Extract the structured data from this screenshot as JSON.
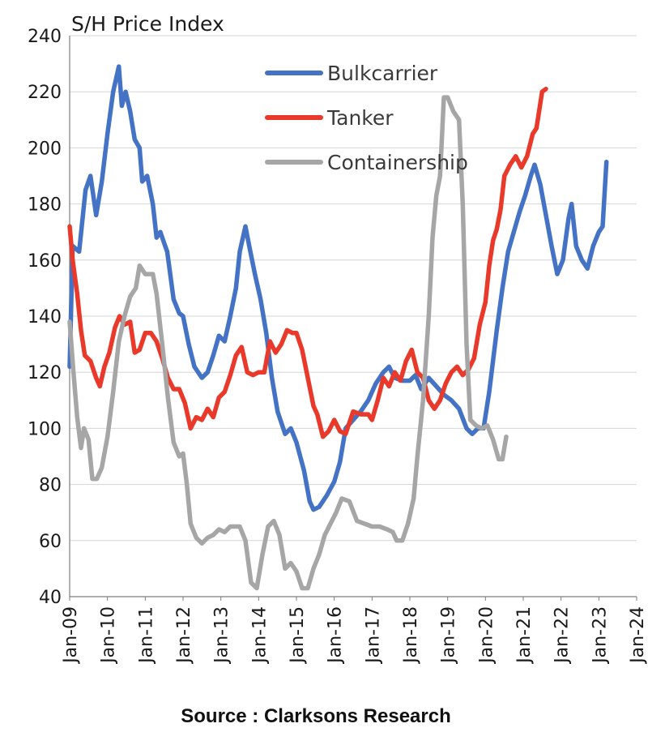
{
  "chart_data": {
    "type": "line",
    "ylabel": "S/H Price Index",
    "ylim": [
      40,
      240
    ],
    "yticks": [
      40,
      60,
      80,
      100,
      120,
      140,
      160,
      180,
      200,
      220,
      240
    ],
    "xlim": [
      2009.0,
      2024.0
    ],
    "xticks": [
      {
        "x": 2009,
        "label": "Jan-09"
      },
      {
        "x": 2010,
        "label": "Jan-10"
      },
      {
        "x": 2011,
        "label": "Jan-11"
      },
      {
        "x": 2012,
        "label": "Jan-12"
      },
      {
        "x": 2013,
        "label": "Jan-13"
      },
      {
        "x": 2014,
        "label": "Jan-14"
      },
      {
        "x": 2015,
        "label": "Jan-15"
      },
      {
        "x": 2016,
        "label": "Jan-16"
      },
      {
        "x": 2017,
        "label": "Jan-17"
      },
      {
        "x": 2018,
        "label": "Jan-18"
      },
      {
        "x": 2019,
        "label": "Jan-19"
      },
      {
        "x": 2020,
        "label": "Jan-20"
      },
      {
        "x": 2021,
        "label": "Jan-21"
      },
      {
        "x": 2022,
        "label": "Jan-22"
      },
      {
        "x": 2023,
        "label": "Jan-23"
      },
      {
        "x": 2024,
        "label": "Jan-24"
      }
    ],
    "grid": "horizontal",
    "legend_position": "top-center",
    "series": [
      {
        "name": "Bulkcarrier",
        "color": "#4472C4",
        "points": [
          [
            2009.0,
            122
          ],
          [
            2009.08,
            165
          ],
          [
            2009.25,
            163
          ],
          [
            2009.42,
            185
          ],
          [
            2009.55,
            190
          ],
          [
            2009.7,
            176
          ],
          [
            2009.85,
            188
          ],
          [
            2010.0,
            205
          ],
          [
            2010.15,
            220
          ],
          [
            2010.3,
            229
          ],
          [
            2010.38,
            215
          ],
          [
            2010.48,
            220
          ],
          [
            2010.6,
            213
          ],
          [
            2010.72,
            203
          ],
          [
            2010.85,
            200
          ],
          [
            2010.92,
            188
          ],
          [
            2011.05,
            190
          ],
          [
            2011.2,
            180
          ],
          [
            2011.3,
            168
          ],
          [
            2011.4,
            170
          ],
          [
            2011.5,
            166
          ],
          [
            2011.58,
            163
          ],
          [
            2011.65,
            156
          ],
          [
            2011.75,
            146
          ],
          [
            2011.9,
            141
          ],
          [
            2012.0,
            140
          ],
          [
            2012.15,
            130
          ],
          [
            2012.3,
            122
          ],
          [
            2012.5,
            118
          ],
          [
            2012.65,
            120
          ],
          [
            2012.8,
            126
          ],
          [
            2012.95,
            133
          ],
          [
            2013.1,
            131
          ],
          [
            2013.25,
            140
          ],
          [
            2013.4,
            150
          ],
          [
            2013.5,
            163
          ],
          [
            2013.65,
            172
          ],
          [
            2013.75,
            165
          ],
          [
            2013.9,
            155
          ],
          [
            2014.05,
            146
          ],
          [
            2014.2,
            134
          ],
          [
            2014.35,
            118
          ],
          [
            2014.5,
            106
          ],
          [
            2014.7,
            98
          ],
          [
            2014.85,
            100
          ],
          [
            2015.0,
            95
          ],
          [
            2015.2,
            85
          ],
          [
            2015.35,
            74
          ],
          [
            2015.45,
            71
          ],
          [
            2015.6,
            72
          ],
          [
            2015.8,
            76
          ],
          [
            2016.0,
            81
          ],
          [
            2016.15,
            88
          ],
          [
            2016.3,
            100
          ],
          [
            2016.5,
            103
          ],
          [
            2016.7,
            106
          ],
          [
            2016.9,
            110
          ],
          [
            2017.1,
            116
          ],
          [
            2017.3,
            120
          ],
          [
            2017.45,
            122
          ],
          [
            2017.6,
            118
          ],
          [
            2017.8,
            117
          ],
          [
            2018.0,
            117
          ],
          [
            2018.15,
            119
          ],
          [
            2018.3,
            114
          ],
          [
            2018.5,
            118
          ],
          [
            2018.7,
            115
          ],
          [
            2018.9,
            112
          ],
          [
            2019.1,
            110
          ],
          [
            2019.3,
            107
          ],
          [
            2019.5,
            100
          ],
          [
            2019.65,
            98
          ],
          [
            2019.8,
            100
          ],
          [
            2019.95,
            100
          ],
          [
            2020.1,
            113
          ],
          [
            2020.3,
            135
          ],
          [
            2020.45,
            150
          ],
          [
            2020.6,
            163
          ],
          [
            2020.75,
            170
          ],
          [
            2020.9,
            177
          ],
          [
            2021.05,
            183
          ],
          [
            2021.2,
            190
          ],
          [
            2021.3,
            194
          ],
          [
            2021.45,
            187
          ],
          [
            2021.6,
            176
          ],
          [
            2021.75,
            165
          ],
          [
            2021.9,
            155
          ],
          [
            2022.05,
            160
          ],
          [
            2022.2,
            175
          ],
          [
            2022.28,
            180
          ],
          [
            2022.4,
            165
          ],
          [
            2022.55,
            160
          ],
          [
            2022.7,
            157
          ],
          [
            2022.85,
            165
          ],
          [
            2023.0,
            170
          ],
          [
            2023.1,
            172
          ],
          [
            2023.2,
            195
          ]
        ]
      },
      {
        "name": "Tanker",
        "color": "#E8392A",
        "points": [
          [
            2009.0,
            172
          ],
          [
            2009.08,
            160
          ],
          [
            2009.2,
            148
          ],
          [
            2009.3,
            135
          ],
          [
            2009.4,
            126
          ],
          [
            2009.55,
            124
          ],
          [
            2009.7,
            118
          ],
          [
            2009.8,
            115
          ],
          [
            2009.92,
            122
          ],
          [
            2010.05,
            127
          ],
          [
            2010.2,
            136
          ],
          [
            2010.32,
            140
          ],
          [
            2010.45,
            137
          ],
          [
            2010.6,
            138
          ],
          [
            2010.72,
            127
          ],
          [
            2010.85,
            128
          ],
          [
            2011.0,
            134
          ],
          [
            2011.15,
            134
          ],
          [
            2011.3,
            131
          ],
          [
            2011.45,
            125
          ],
          [
            2011.6,
            118
          ],
          [
            2011.75,
            114
          ],
          [
            2011.9,
            114
          ],
          [
            2012.05,
            109
          ],
          [
            2012.2,
            100
          ],
          [
            2012.35,
            104
          ],
          [
            2012.5,
            103
          ],
          [
            2012.65,
            107
          ],
          [
            2012.8,
            104
          ],
          [
            2012.95,
            111
          ],
          [
            2013.1,
            113
          ],
          [
            2013.25,
            119
          ],
          [
            2013.4,
            126
          ],
          [
            2013.55,
            129
          ],
          [
            2013.7,
            120
          ],
          [
            2013.85,
            119
          ],
          [
            2014.0,
            120
          ],
          [
            2014.15,
            120
          ],
          [
            2014.3,
            131
          ],
          [
            2014.45,
            127
          ],
          [
            2014.6,
            130
          ],
          [
            2014.75,
            135
          ],
          [
            2014.9,
            134
          ],
          [
            2015.0,
            134
          ],
          [
            2015.15,
            128
          ],
          [
            2015.3,
            118
          ],
          [
            2015.45,
            108
          ],
          [
            2015.55,
            105
          ],
          [
            2015.7,
            97
          ],
          [
            2015.85,
            99
          ],
          [
            2016.0,
            103
          ],
          [
            2016.15,
            99
          ],
          [
            2016.3,
            98
          ],
          [
            2016.5,
            106
          ],
          [
            2016.7,
            105
          ],
          [
            2016.9,
            105
          ],
          [
            2017.0,
            103
          ],
          [
            2017.15,
            110
          ],
          [
            2017.3,
            118
          ],
          [
            2017.45,
            115
          ],
          [
            2017.6,
            120
          ],
          [
            2017.75,
            117
          ],
          [
            2017.9,
            124
          ],
          [
            2018.05,
            128
          ],
          [
            2018.2,
            120
          ],
          [
            2018.35,
            118
          ],
          [
            2018.5,
            110
          ],
          [
            2018.65,
            107
          ],
          [
            2018.8,
            110
          ],
          [
            2018.95,
            116
          ],
          [
            2019.1,
            120
          ],
          [
            2019.25,
            122
          ],
          [
            2019.4,
            119
          ],
          [
            2019.55,
            121
          ],
          [
            2019.7,
            125
          ],
          [
            2019.85,
            137
          ],
          [
            2020.0,
            145
          ],
          [
            2020.1,
            158
          ],
          [
            2020.2,
            167
          ],
          [
            2020.3,
            171
          ],
          [
            2020.4,
            178
          ],
          [
            2020.5,
            190
          ],
          [
            2020.65,
            194
          ],
          [
            2020.8,
            197
          ],
          [
            2020.95,
            193
          ],
          [
            2021.1,
            197
          ],
          [
            2021.25,
            205
          ],
          [
            2021.35,
            207
          ],
          [
            2021.5,
            220
          ],
          [
            2021.6,
            221
          ]
        ]
      },
      {
        "name": "Containership",
        "color": "#A6A6A6",
        "points": [
          [
            2009.0,
            138
          ],
          [
            2009.1,
            120
          ],
          [
            2009.2,
            104
          ],
          [
            2009.3,
            93
          ],
          [
            2009.38,
            100
          ],
          [
            2009.5,
            96
          ],
          [
            2009.6,
            82
          ],
          [
            2009.72,
            82
          ],
          [
            2009.85,
            86
          ],
          [
            2010.0,
            97
          ],
          [
            2010.15,
            113
          ],
          [
            2010.3,
            131
          ],
          [
            2010.45,
            140
          ],
          [
            2010.6,
            147
          ],
          [
            2010.75,
            150
          ],
          [
            2010.85,
            158
          ],
          [
            2011.0,
            155
          ],
          [
            2011.2,
            155
          ],
          [
            2011.3,
            148
          ],
          [
            2011.45,
            130
          ],
          [
            2011.6,
            111
          ],
          [
            2011.75,
            95
          ],
          [
            2011.9,
            90
          ],
          [
            2012.0,
            91
          ],
          [
            2012.1,
            80
          ],
          [
            2012.2,
            66
          ],
          [
            2012.35,
            61
          ],
          [
            2012.5,
            59
          ],
          [
            2012.65,
            61
          ],
          [
            2012.8,
            62
          ],
          [
            2012.95,
            64
          ],
          [
            2013.1,
            63
          ],
          [
            2013.25,
            65
          ],
          [
            2013.5,
            65
          ],
          [
            2013.65,
            60
          ],
          [
            2013.8,
            45
          ],
          [
            2013.95,
            43
          ],
          [
            2014.1,
            55
          ],
          [
            2014.25,
            65
          ],
          [
            2014.4,
            67
          ],
          [
            2014.55,
            62
          ],
          [
            2014.7,
            50
          ],
          [
            2014.85,
            52
          ],
          [
            2015.0,
            49
          ],
          [
            2015.15,
            43
          ],
          [
            2015.3,
            43
          ],
          [
            2015.45,
            50
          ],
          [
            2015.6,
            55
          ],
          [
            2015.75,
            62
          ],
          [
            2015.9,
            66
          ],
          [
            2016.05,
            70
          ],
          [
            2016.2,
            75
          ],
          [
            2016.4,
            74
          ],
          [
            2016.6,
            67
          ],
          [
            2016.8,
            66
          ],
          [
            2017.0,
            65
          ],
          [
            2017.2,
            65
          ],
          [
            2017.4,
            64
          ],
          [
            2017.55,
            63
          ],
          [
            2017.65,
            60
          ],
          [
            2017.8,
            60
          ],
          [
            2017.95,
            66
          ],
          [
            2018.1,
            75
          ],
          [
            2018.2,
            90
          ],
          [
            2018.35,
            110
          ],
          [
            2018.5,
            140
          ],
          [
            2018.6,
            168
          ],
          [
            2018.7,
            183
          ],
          [
            2018.8,
            190
          ],
          [
            2018.9,
            218
          ],
          [
            2019.0,
            218
          ],
          [
            2019.15,
            213
          ],
          [
            2019.3,
            210
          ],
          [
            2019.4,
            180
          ],
          [
            2019.5,
            130
          ],
          [
            2019.6,
            103
          ],
          [
            2019.75,
            101
          ],
          [
            2019.9,
            100
          ],
          [
            2020.05,
            101
          ],
          [
            2020.2,
            96
          ],
          [
            2020.35,
            89
          ],
          [
            2020.45,
            89
          ],
          [
            2020.55,
            97
          ]
        ]
      }
    ]
  },
  "source_note": "Source : Clarksons Research"
}
